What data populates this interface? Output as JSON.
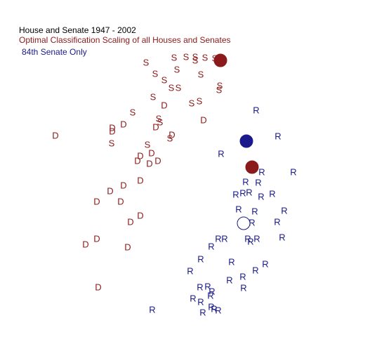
{
  "chart_data": {
    "type": "scatter",
    "title": "House and Senate  1947 - 2002",
    "subtitle": "Optimal Classification Scaling of all Houses and Senates",
    "annotation": "84th Senate Only",
    "title_color": "#000000",
    "subtitle_color": "#8b1a1a",
    "annotation_color": "#1a1a8c",
    "xlim": [
      -1,
      1
    ],
    "ylim": [
      -1,
      1
    ],
    "series": [
      {
        "symbol": "S",
        "color": "#8b1a1a",
        "x": [
          -0.248,
          -0.088,
          -0.02,
          0.032,
          0.032,
          0.088,
          0.144,
          -0.072,
          -0.196,
          0.064,
          -0.144,
          -0.104,
          -0.064,
          0.172,
          0.168,
          -0.208,
          0.012,
          0.056,
          -0.324,
          -0.176,
          -0.168,
          -0.24,
          -0.444,
          -0.112
        ],
        "y": [
          0.7,
          0.728,
          0.732,
          0.732,
          0.712,
          0.728,
          0.724,
          0.66,
          0.636,
          0.632,
          0.6,
          0.556,
          0.556,
          0.568,
          0.544,
          0.504,
          0.468,
          0.48,
          0.416,
          0.38,
          0.36,
          0.232,
          0.24,
          0.268
        ]
      },
      {
        "symbol": "D",
        "color": "#8b1a1a",
        "x": [
          -0.764,
          -0.44,
          -0.44,
          -0.376,
          -0.192,
          -0.144,
          0.08,
          -0.1,
          -0.216,
          -0.28,
          -0.296,
          -0.18,
          -0.228,
          -0.28,
          -0.376,
          -0.452,
          -0.528,
          -0.392,
          -0.28,
          -0.336,
          -0.528,
          -0.592,
          -0.352,
          -0.52
        ],
        "y": [
          0.284,
          0.328,
          0.308,
          0.348,
          0.332,
          0.456,
          0.372,
          0.288,
          0.184,
          0.168,
          0.14,
          0.14,
          0.124,
          0.028,
          0,
          -0.032,
          -0.092,
          -0.092,
          -0.172,
          -0.208,
          -0.304,
          -0.336,
          -0.352,
          -0.58
        ]
      },
      {
        "symbol": "R",
        "color": "#1a1a8c",
        "x": [
          0.38,
          0.504,
          0.18,
          0.412,
          0.592,
          0.32,
          0.392,
          0.264,
          0.304,
          0.34,
          0.472,
          0.408,
          0.28,
          0.372,
          0.54,
          0.5,
          0.356,
          0.124,
          0.164,
          0.2,
          0.332,
          0.348,
          0.384,
          0.528,
          0.064,
          0.24,
          0.004,
          0.432,
          0.376,
          0.304,
          0.228,
          0.308,
          0.06,
          0.104,
          0.128,
          0.12,
          0.02,
          0.064,
          0.124,
          0.14,
          0.164,
          0.076,
          -0.212
        ],
        "y": [
          0.428,
          0.28,
          0.18,
          0.076,
          0.076,
          0.02,
          0.016,
          -0.052,
          -0.044,
          -0.04,
          -0.048,
          -0.064,
          -0.136,
          -0.148,
          -0.144,
          -0.208,
          -0.212,
          -0.348,
          -0.304,
          -0.304,
          -0.304,
          -0.32,
          -0.304,
          -0.296,
          -0.42,
          -0.436,
          -0.488,
          -0.448,
          -0.484,
          -0.52,
          -0.54,
          -0.584,
          -0.58,
          -0.576,
          -0.604,
          -0.628,
          -0.644,
          -0.664,
          -0.692,
          -0.704,
          -0.712,
          -0.724,
          -0.708
        ]
      },
      {
        "marker": "circle",
        "color": "#8b1a1a",
        "fill": "#8b1a1a",
        "x": [
          0.176,
          0.356
        ],
        "y": [
          0.716,
          0.108
        ]
      },
      {
        "marker": "circle",
        "color": "#1a1a8c",
        "fill": "#1a1a8c",
        "x": [
          0.324
        ],
        "y": [
          0.256
        ]
      },
      {
        "marker": "circle",
        "color": "#1a1a8c",
        "fill": "#ffffff",
        "x": [
          0.308
        ],
        "y": [
          -0.212
        ]
      }
    ]
  }
}
